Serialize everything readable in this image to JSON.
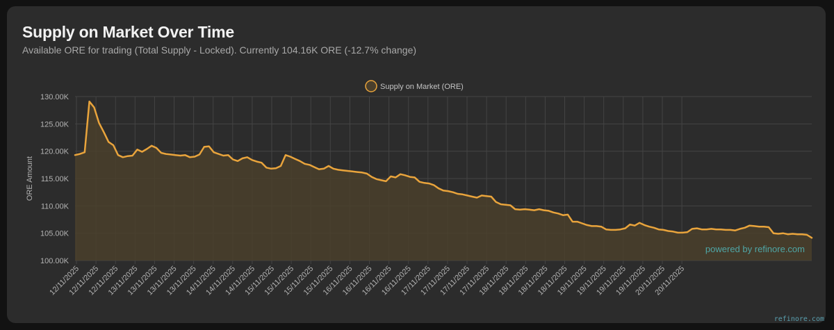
{
  "card": {
    "title": "Supply on Market Over Time",
    "subtitle": "Available ORE for trading (Total Supply - Locked). Currently 104.16K ORE (-12.7% change)",
    "watermark": "powered by refinore.com",
    "footer_credit": "refinore.com"
  },
  "colors": {
    "background": "#121212",
    "card": "#2c2c2c",
    "line": "#e9a43c",
    "fill": "#4a3f2c",
    "grid": "#444444",
    "watermark": "#4fa6a6"
  },
  "chart_data": {
    "type": "area",
    "title": "",
    "xlabel": "",
    "ylabel": "ORE Amount",
    "ylim": [
      100000,
      130000
    ],
    "y_ticks": [
      "100.00K",
      "105.00K",
      "110.00K",
      "115.00K",
      "120.00K",
      "125.00K",
      "130.00K"
    ],
    "y_tick_values": [
      100000,
      105000,
      110000,
      115000,
      120000,
      125000,
      130000
    ],
    "x_ticks": [
      "12/11/2025",
      "12/11/2025",
      "12/11/2025",
      "13/11/2025",
      "13/11/2025",
      "13/11/2025",
      "13/11/2025",
      "14/11/2025",
      "14/11/2025",
      "14/11/2025",
      "15/11/2025",
      "15/11/2025",
      "15/11/2025",
      "15/11/2025",
      "16/11/2025",
      "16/11/2025",
      "16/11/2025",
      "16/11/2025",
      "17/11/2025",
      "17/11/2025",
      "17/11/2025",
      "17/11/2025",
      "18/11/2025",
      "18/11/2025",
      "18/11/2025",
      "18/11/2025",
      "19/11/2025",
      "19/11/2025",
      "19/11/2025",
      "19/11/2025",
      "20/11/2025",
      "20/11/2025"
    ],
    "grid": true,
    "legend_position": "top-center",
    "series": [
      {
        "name": "Supply on Market (ORE)",
        "values": [
          119300,
          119500,
          119800,
          129100,
          128000,
          125200,
          123500,
          121700,
          121100,
          119300,
          118900,
          119100,
          119200,
          120300,
          119900,
          120400,
          121000,
          120600,
          119700,
          119500,
          119400,
          119300,
          119200,
          119300,
          118900,
          119000,
          119400,
          120800,
          120900,
          119800,
          119500,
          119200,
          119300,
          118500,
          118200,
          118700,
          118900,
          118400,
          118100,
          117900,
          117000,
          116800,
          116900,
          117300,
          119300,
          119000,
          118600,
          118200,
          117700,
          117500,
          117100,
          116700,
          116800,
          117300,
          116800,
          116600,
          116500,
          116400,
          116300,
          116200,
          116100,
          115900,
          115300,
          114900,
          114700,
          114500,
          115400,
          115200,
          115800,
          115600,
          115300,
          115200,
          114400,
          114200,
          114100,
          113800,
          113200,
          112800,
          112700,
          112500,
          112200,
          112100,
          111900,
          111700,
          111500,
          111900,
          111800,
          111700,
          110700,
          110300,
          110200,
          110100,
          109400,
          109300,
          109400,
          109300,
          109200,
          109400,
          109200,
          109100,
          108800,
          108600,
          108300,
          108400,
          107100,
          107100,
          106800,
          106500,
          106300,
          106300,
          106200,
          105700,
          105600,
          105600,
          105700,
          105900,
          106600,
          106400,
          106900,
          106500,
          106200,
          106000,
          105700,
          105600,
          105400,
          105300,
          105100,
          105100,
          105200,
          105800,
          105900,
          105700,
          105700,
          105800,
          105700,
          105700,
          105600,
          105600,
          105500,
          105800,
          106000,
          106400,
          106300,
          106200,
          106200,
          106100,
          105000,
          104900,
          105000,
          104800,
          104900,
          104800,
          104800,
          104700,
          104160
        ]
      }
    ]
  }
}
